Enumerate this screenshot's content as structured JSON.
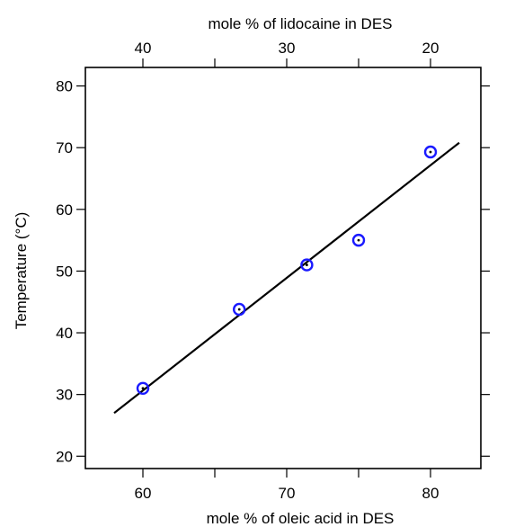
{
  "chart_data": {
    "type": "scatter",
    "xlabel": "mole % of oleic acid in DES",
    "ylabel": "Temperature (°C)",
    "x2label": "mole % of lidocaine in DES",
    "xlim": [
      56,
      83.5
    ],
    "ylim": [
      18,
      83
    ],
    "x_ticks": [
      60,
      70,
      80
    ],
    "x_minor_ticks": [
      65,
      75
    ],
    "y_ticks": [
      20,
      30,
      40,
      50,
      60,
      70,
      80
    ],
    "x2_ticks": [
      40,
      30,
      20
    ],
    "x2_tick_positions_primary": [
      60,
      70,
      80
    ],
    "x2_minor_ticks_primary": [
      65,
      75
    ],
    "grid": false,
    "legend": "none",
    "series": [
      {
        "type": "scatter",
        "marker": "open-circle-with-dot",
        "color": "#1a1aff",
        "x": [
          60,
          66.7,
          71.4,
          75,
          80
        ],
        "y": [
          31,
          43.8,
          51,
          55,
          69.3
        ]
      },
      {
        "type": "line",
        "color": "#000000",
        "x": [
          58,
          82
        ],
        "y": [
          27,
          70.8
        ]
      }
    ]
  }
}
